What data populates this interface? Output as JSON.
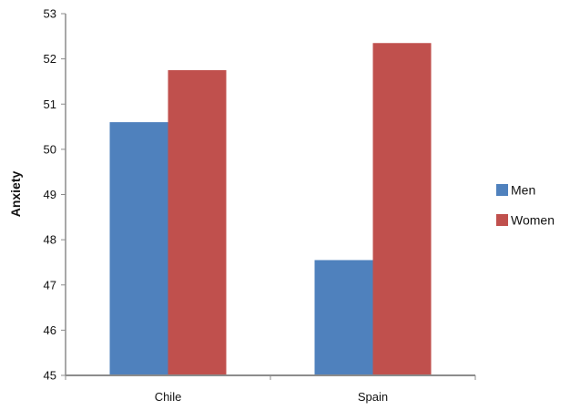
{
  "chart_data": {
    "type": "bar",
    "title": "",
    "xlabel": "",
    "ylabel": "Anxiety",
    "categories": [
      "Chile",
      "Spain"
    ],
    "series": [
      {
        "name": "Men",
        "values": [
          50.6,
          47.55
        ],
        "color": "#4f81bd"
      },
      {
        "name": "Women",
        "values": [
          51.75,
          52.35
        ],
        "color": "#c0504d"
      }
    ],
    "ylim": [
      45,
      53
    ],
    "yticks": [
      45,
      46,
      47,
      48,
      49,
      50,
      51,
      52,
      53
    ],
    "grid": false,
    "legend_position": "right"
  }
}
